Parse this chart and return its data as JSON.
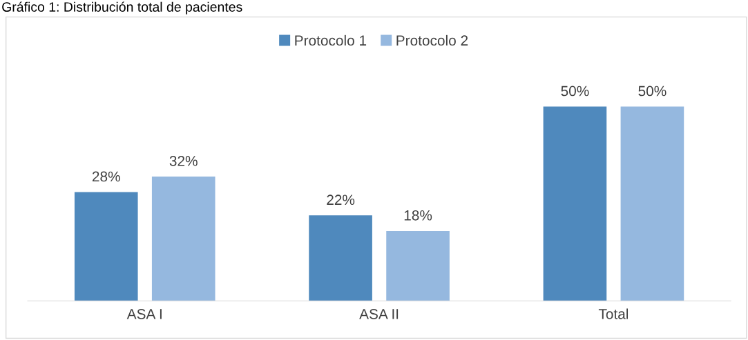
{
  "chart_data": {
    "type": "bar",
    "title": "Gráfico 1: Distribución total de pacientes",
    "categories": [
      "ASA I",
      "ASA II",
      "Total"
    ],
    "series": [
      {
        "name": "Protocolo 1",
        "color": "#4f89bd",
        "values": [
          28,
          22,
          50
        ],
        "value_labels": [
          "28%",
          "22%",
          "50%"
        ]
      },
      {
        "name": "Protocolo 2",
        "color": "#95b8df",
        "values": [
          32,
          18,
          50
        ],
        "value_labels": [
          "32%",
          "18%",
          "50%"
        ]
      }
    ],
    "legend": "top",
    "grid": false
  }
}
